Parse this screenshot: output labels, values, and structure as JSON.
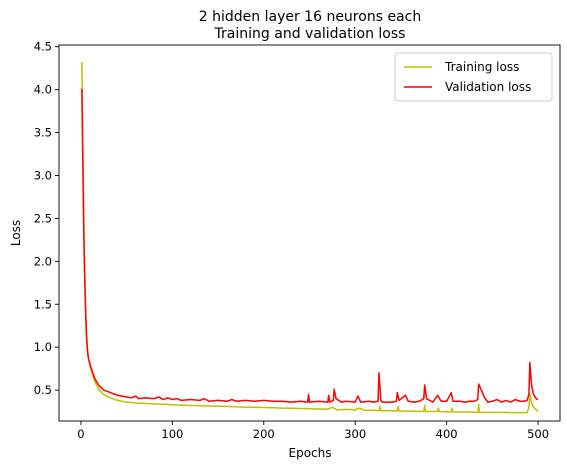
{
  "chart_data": {
    "type": "line",
    "title_line1": "2 hidden layer 16 neurons each",
    "title_line2": "Training and validation loss",
    "xlabel": "Epochs",
    "ylabel": "Loss",
    "xlim": [
      -24,
      524
    ],
    "ylim": [
      0.14,
      4.52
    ],
    "x_ticks": [
      0,
      100,
      200,
      300,
      400,
      500
    ],
    "y_ticks": [
      0.5,
      1.0,
      1.5,
      2.0,
      2.5,
      3.0,
      3.5,
      4.0,
      4.5
    ],
    "x_tick_labels": [
      "0",
      "100",
      "200",
      "300",
      "400",
      "500"
    ],
    "y_tick_labels": [
      "0.5",
      "1.0",
      "1.5",
      "2.0",
      "2.5",
      "3.0",
      "3.5",
      "4.0",
      "4.5"
    ],
    "legend_position": "top-right",
    "series": [
      {
        "name": "Training loss",
        "color": "#bfbf00",
        "points": [
          [
            1,
            4.32
          ],
          [
            2,
            3.4
          ],
          [
            3,
            2.55
          ],
          [
            4,
            1.95
          ],
          [
            5,
            1.5
          ],
          [
            6,
            1.2
          ],
          [
            7,
            1.0
          ],
          [
            8,
            0.88
          ],
          [
            10,
            0.78
          ],
          [
            12,
            0.7
          ],
          [
            15,
            0.6
          ],
          [
            18,
            0.54
          ],
          [
            20,
            0.5
          ],
          [
            25,
            0.45
          ],
          [
            30,
            0.42
          ],
          [
            35,
            0.4
          ],
          [
            40,
            0.38
          ],
          [
            45,
            0.37
          ],
          [
            50,
            0.36
          ],
          [
            60,
            0.35
          ],
          [
            70,
            0.345
          ],
          [
            80,
            0.34
          ],
          [
            90,
            0.335
          ],
          [
            100,
            0.33
          ],
          [
            110,
            0.325
          ],
          [
            120,
            0.32
          ],
          [
            130,
            0.318
          ],
          [
            140,
            0.315
          ],
          [
            150,
            0.312
          ],
          [
            160,
            0.31
          ],
          [
            170,
            0.305
          ],
          [
            180,
            0.302
          ],
          [
            190,
            0.3
          ],
          [
            200,
            0.298
          ],
          [
            210,
            0.295
          ],
          [
            220,
            0.29
          ],
          [
            230,
            0.288
          ],
          [
            240,
            0.285
          ],
          [
            250,
            0.283
          ],
          [
            260,
            0.28
          ],
          [
            270,
            0.278
          ],
          [
            275,
            0.3
          ],
          [
            280,
            0.27
          ],
          [
            290,
            0.275
          ],
          [
            300,
            0.27
          ],
          [
            305,
            0.29
          ],
          [
            310,
            0.265
          ],
          [
            320,
            0.265
          ],
          [
            326,
            0.26
          ],
          [
            327,
            0.31
          ],
          [
            328,
            0.26
          ],
          [
            340,
            0.26
          ],
          [
            346,
            0.255
          ],
          [
            347,
            0.31
          ],
          [
            348,
            0.255
          ],
          [
            360,
            0.255
          ],
          [
            375,
            0.25
          ],
          [
            376,
            0.32
          ],
          [
            377,
            0.25
          ],
          [
            390,
            0.25
          ],
          [
            391,
            0.29
          ],
          [
            392,
            0.25
          ],
          [
            405,
            0.245
          ],
          [
            406,
            0.29
          ],
          [
            407,
            0.245
          ],
          [
            420,
            0.245
          ],
          [
            434,
            0.24
          ],
          [
            435,
            0.33
          ],
          [
            436,
            0.24
          ],
          [
            450,
            0.24
          ],
          [
            460,
            0.24
          ],
          [
            470,
            0.238
          ],
          [
            480,
            0.237
          ],
          [
            488,
            0.237
          ],
          [
            490,
            0.3
          ],
          [
            491,
            0.45
          ],
          [
            493,
            0.35
          ],
          [
            495,
            0.3
          ],
          [
            500,
            0.25
          ]
        ]
      },
      {
        "name": "Validation loss",
        "color": "#ff0000",
        "points": [
          [
            1,
            4.01
          ],
          [
            2,
            3.2
          ],
          [
            3,
            2.4
          ],
          [
            4,
            1.85
          ],
          [
            5,
            1.45
          ],
          [
            6,
            1.15
          ],
          [
            7,
            0.98
          ],
          [
            8,
            0.88
          ],
          [
            10,
            0.8
          ],
          [
            12,
            0.73
          ],
          [
            15,
            0.64
          ],
          [
            18,
            0.58
          ],
          [
            20,
            0.55
          ],
          [
            25,
            0.5
          ],
          [
            30,
            0.48
          ],
          [
            35,
            0.46
          ],
          [
            40,
            0.44
          ],
          [
            45,
            0.43
          ],
          [
            50,
            0.42
          ],
          [
            55,
            0.41
          ],
          [
            60,
            0.43
          ],
          [
            63,
            0.4
          ],
          [
            70,
            0.41
          ],
          [
            80,
            0.4
          ],
          [
            85,
            0.42
          ],
          [
            90,
            0.39
          ],
          [
            95,
            0.41
          ],
          [
            100,
            0.39
          ],
          [
            105,
            0.4
          ],
          [
            110,
            0.38
          ],
          [
            120,
            0.39
          ],
          [
            130,
            0.38
          ],
          [
            135,
            0.4
          ],
          [
            140,
            0.37
          ],
          [
            150,
            0.38
          ],
          [
            160,
            0.37
          ],
          [
            165,
            0.39
          ],
          [
            170,
            0.37
          ],
          [
            180,
            0.38
          ],
          [
            190,
            0.37
          ],
          [
            200,
            0.38
          ],
          [
            210,
            0.37
          ],
          [
            220,
            0.37
          ],
          [
            230,
            0.36
          ],
          [
            240,
            0.37
          ],
          [
            248,
            0.36
          ],
          [
            249,
            0.45
          ],
          [
            250,
            0.36
          ],
          [
            260,
            0.37
          ],
          [
            270,
            0.36
          ],
          [
            271,
            0.44
          ],
          [
            272,
            0.36
          ],
          [
            276,
            0.38
          ],
          [
            277,
            0.51
          ],
          [
            279,
            0.4
          ],
          [
            285,
            0.36
          ],
          [
            290,
            0.37
          ],
          [
            300,
            0.36
          ],
          [
            303,
            0.43
          ],
          [
            306,
            0.36
          ],
          [
            315,
            0.37
          ],
          [
            320,
            0.36
          ],
          [
            325,
            0.37
          ],
          [
            326,
            0.7
          ],
          [
            327,
            0.55
          ],
          [
            328,
            0.38
          ],
          [
            330,
            0.36
          ],
          [
            340,
            0.36
          ],
          [
            345,
            0.37
          ],
          [
            346,
            0.47
          ],
          [
            348,
            0.38
          ],
          [
            355,
            0.44
          ],
          [
            358,
            0.37
          ],
          [
            365,
            0.36
          ],
          [
            370,
            0.37
          ],
          [
            375,
            0.4
          ],
          [
            376,
            0.56
          ],
          [
            378,
            0.4
          ],
          [
            385,
            0.36
          ],
          [
            390,
            0.44
          ],
          [
            394,
            0.37
          ],
          [
            400,
            0.37
          ],
          [
            405,
            0.47
          ],
          [
            407,
            0.37
          ],
          [
            415,
            0.37
          ],
          [
            420,
            0.36
          ],
          [
            425,
            0.37
          ],
          [
            430,
            0.37
          ],
          [
            434,
            0.39
          ],
          [
            435,
            0.57
          ],
          [
            438,
            0.5
          ],
          [
            441,
            0.42
          ],
          [
            445,
            0.36
          ],
          [
            450,
            0.37
          ],
          [
            455,
            0.39
          ],
          [
            460,
            0.36
          ],
          [
            465,
            0.38
          ],
          [
            470,
            0.36
          ],
          [
            475,
            0.39
          ],
          [
            480,
            0.37
          ],
          [
            485,
            0.37
          ],
          [
            488,
            0.38
          ],
          [
            490,
            0.45
          ],
          [
            491,
            0.82
          ],
          [
            493,
            0.55
          ],
          [
            495,
            0.45
          ],
          [
            498,
            0.4
          ],
          [
            500,
            0.39
          ]
        ]
      }
    ]
  }
}
